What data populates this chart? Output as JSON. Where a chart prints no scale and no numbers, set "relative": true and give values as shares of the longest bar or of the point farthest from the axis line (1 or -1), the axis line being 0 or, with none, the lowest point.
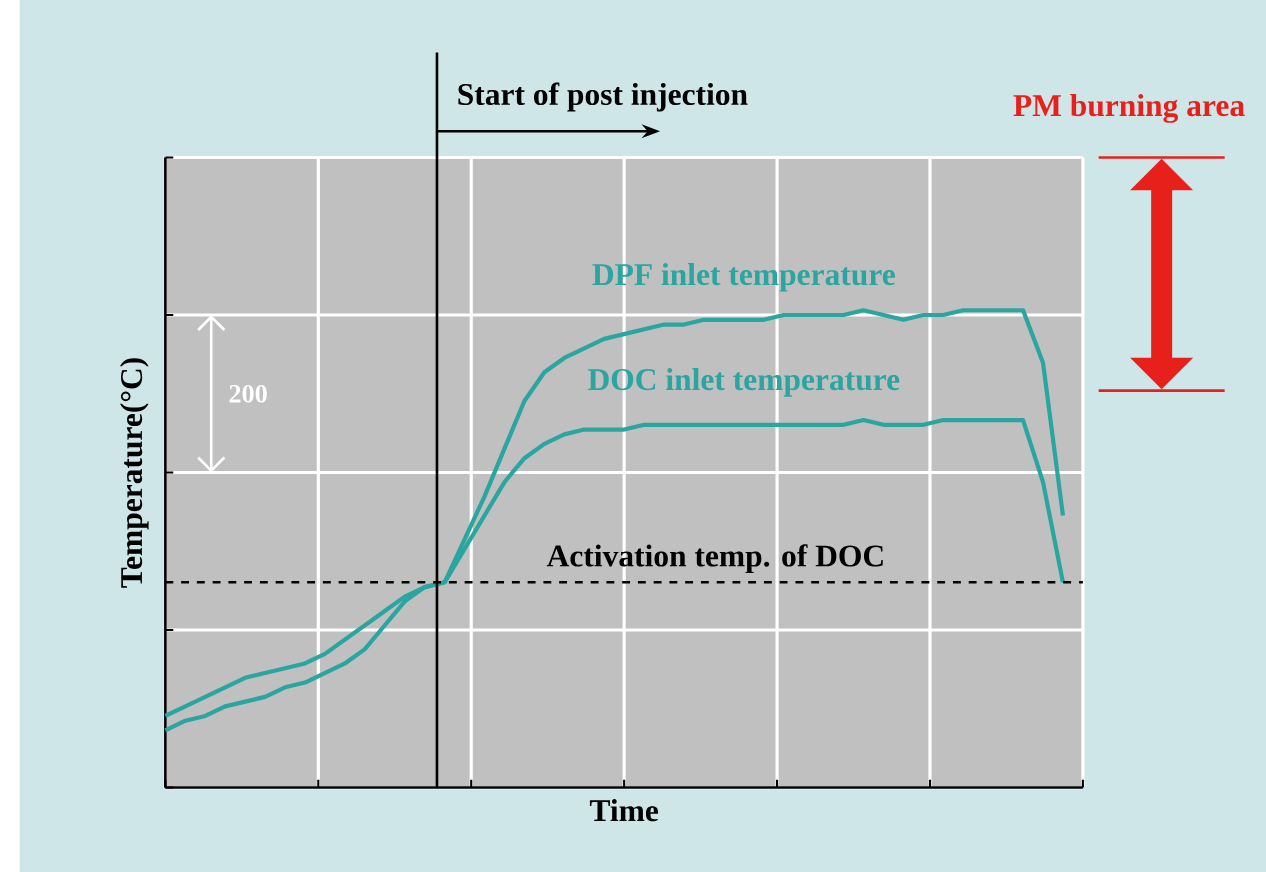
{
  "chart_data": {
    "type": "line",
    "relative": true,
    "xlabel": "Time",
    "ylabel": "Temperature(°C)",
    "grid": true,
    "categories": [
      null,
      null,
      null,
      null,
      null,
      null,
      null,
      null,
      null,
      null,
      null,
      null,
      null,
      null,
      null,
      null,
      null,
      null,
      null,
      null,
      null,
      null,
      null,
      null,
      null,
      null,
      null,
      null,
      null,
      null,
      null,
      null,
      null,
      null,
      null,
      null,
      null,
      null,
      null,
      null,
      null,
      null,
      null,
      null,
      null,
      null,
      null
    ],
    "series": [
      {
        "name": "DPF inlet temperature",
        "color": "#2aa5a0",
        "values": [
          0.12,
          0.14,
          0.15,
          0.17,
          0.18,
          0.19,
          0.21,
          0.22,
          0.24,
          0.26,
          0.29,
          0.34,
          0.39,
          0.42,
          0.43,
          0.52,
          0.61,
          0.71,
          0.81,
          0.87,
          0.9,
          0.92,
          0.94,
          0.95,
          0.96,
          0.97,
          0.97,
          0.98,
          0.98,
          0.98,
          0.98,
          0.99,
          0.99,
          0.99,
          0.99,
          1.0,
          0.99,
          0.98,
          0.99,
          0.99,
          1.0,
          1.0,
          1.0,
          1.0,
          0.89,
          0.57,
          null
        ]
      },
      {
        "name": "DOC inlet temperature",
        "color": "#2aa5a0",
        "values": [
          0.15,
          0.17,
          0.19,
          0.21,
          0.23,
          0.24,
          0.25,
          0.26,
          0.28,
          0.31,
          0.34,
          0.37,
          0.4,
          0.42,
          0.43,
          0.5,
          0.57,
          0.64,
          0.69,
          0.72,
          0.74,
          0.75,
          0.75,
          0.75,
          0.76,
          0.76,
          0.76,
          0.76,
          0.76,
          0.76,
          0.76,
          0.76,
          0.76,
          0.76,
          0.76,
          0.77,
          0.76,
          0.76,
          0.76,
          0.77,
          0.77,
          0.77,
          0.77,
          0.77,
          0.64,
          0.43,
          null
        ]
      }
    ],
    "ref_lines": [
      {
        "axis": "y",
        "value": 0.43,
        "label": "Activation temp. of DOC",
        "line_style": "dashed",
        "color": "#000000"
      }
    ],
    "annotations": [
      "200",
      "Start of post injection",
      "PM burning area"
    ]
  }
}
